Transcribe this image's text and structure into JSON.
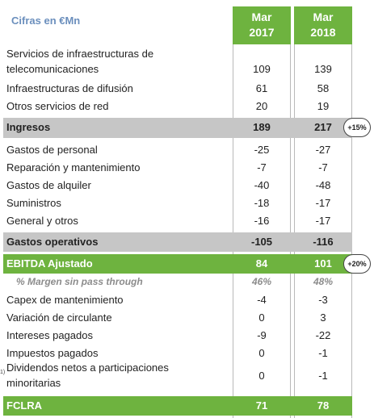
{
  "header": {
    "unit_label": "Cifras en €Mn",
    "col1": {
      "month": "Mar",
      "year": "2017"
    },
    "col2": {
      "month": "Mar",
      "year": "2018"
    }
  },
  "rows": {
    "servicios": {
      "label1": "Servicios de infraestructuras de",
      "label2": "telecomunicaciones",
      "v1": "109",
      "v2": "139"
    },
    "difusion": {
      "label": "Infraestructuras de difusión",
      "v1": "61",
      "v2": "58"
    },
    "otros_red": {
      "label": "Otros servicios de red",
      "v1": "20",
      "v2": "19"
    },
    "ingresos": {
      "label": "Ingresos",
      "v1": "189",
      "v2": "217",
      "badge": "+15%"
    },
    "personal": {
      "label": "Gastos de personal",
      "v1": "-25",
      "v2": "-27"
    },
    "reparacion": {
      "label": "Reparación y mantenimiento",
      "v1": "-7",
      "v2": "-7"
    },
    "alquiler": {
      "label": "Gastos de alquiler",
      "v1": "-40",
      "v2": "-48"
    },
    "suministros": {
      "label": "Suministros",
      "v1": "-18",
      "v2": "-17"
    },
    "general": {
      "label": "General y otros",
      "v1": "-16",
      "v2": "-17"
    },
    "gastos_op": {
      "label": "Gastos operativos",
      "v1": "-105",
      "v2": "-116"
    },
    "ebitda": {
      "label": "EBITDA Ajustado",
      "v1": "84",
      "v2": "101",
      "badge": "+20%"
    },
    "margen": {
      "label": "% Margen sin pass through",
      "v1": "46%",
      "v2": "48%"
    },
    "capex": {
      "label": "Capex de mantenimiento",
      "v1": "-4",
      "v2": "-3"
    },
    "circulante": {
      "label": "Variación de circulante",
      "v1": "0",
      "v2": "3"
    },
    "intereses": {
      "label": "Intereses pagados",
      "v1": "-9",
      "v2": "-22"
    },
    "impuestos": {
      "label": "Impuestos pagados",
      "v1": "0",
      "v2": "-1"
    },
    "dividendos": {
      "label1": "Dividendos netos a participaciones",
      "label2": "minoritarias",
      "v1": "0",
      "v2": "-1",
      "note": "1)"
    },
    "fclra": {
      "label": "FCLRA",
      "v1": "71",
      "v2": "78"
    }
  },
  "colors": {
    "green": "#6eb33f",
    "grey": "#c6c6c6",
    "unit_blue": "#6b8fbd"
  }
}
